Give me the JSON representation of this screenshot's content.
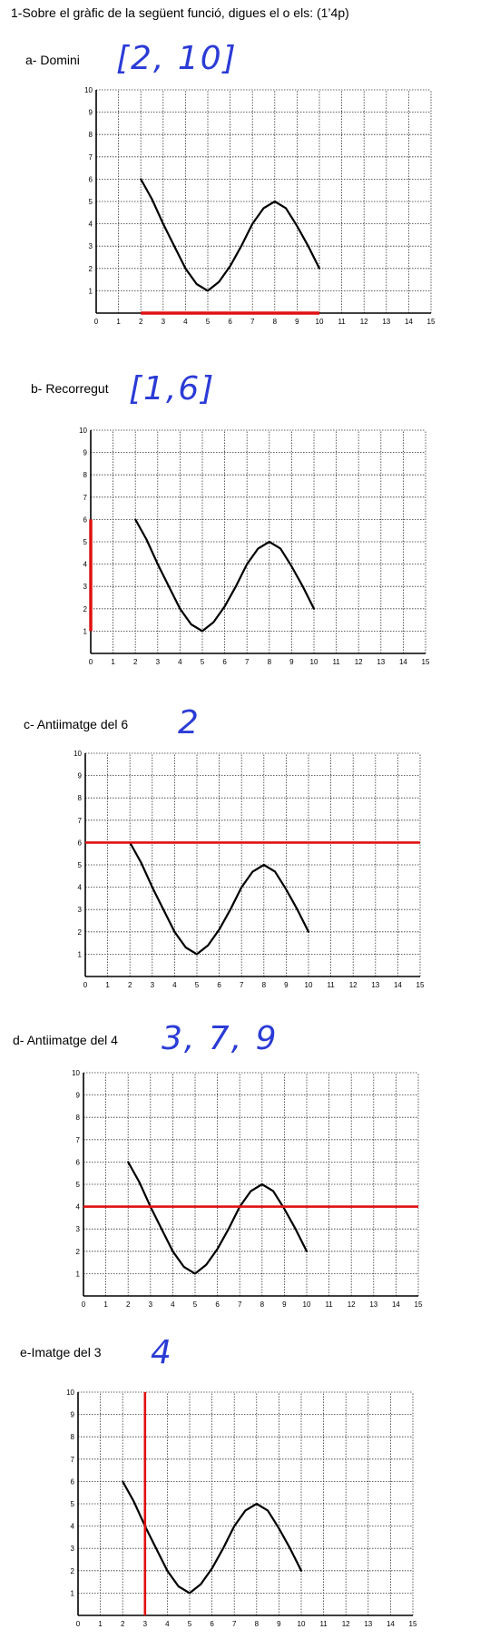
{
  "header": {
    "title": "1-Sobre el gràfic de la següent funció, digues el o els:   (1’4p)"
  },
  "sections": [
    {
      "label": "a- Domini",
      "answer": "[2, 10]",
      "highlight": "x-segment"
    },
    {
      "label": "b- Recorregut",
      "answer": "[1,6]",
      "highlight": "y-segment"
    },
    {
      "label": "c- Antiimatge del 6",
      "answer": "2",
      "highlight": "hline-6"
    },
    {
      "label": "d- Antiimatge del 4",
      "answer": "3, 7, 9",
      "highlight": "hline-4"
    },
    {
      "label": "e-Imatge del 3",
      "answer": "4",
      "highlight": "vline-3"
    }
  ],
  "chart_data": {
    "type": "line",
    "x": [
      2,
      2.5,
      3,
      3.5,
      4,
      4.5,
      5,
      5.5,
      6,
      6.5,
      7,
      7.5,
      8,
      8.5,
      9,
      9.5,
      10
    ],
    "y": [
      6,
      5.1,
      4,
      3,
      2,
      1.3,
      1,
      1.4,
      2.1,
      3,
      4,
      4.7,
      5,
      4.7,
      3.9,
      3,
      2
    ],
    "xlim": [
      0,
      15
    ],
    "ylim": [
      0,
      10
    ],
    "x_ticks": [
      "0",
      "1",
      "2",
      "3",
      "4",
      "5",
      "6",
      "7",
      "8",
      "9",
      "10",
      "11",
      "12",
      "13",
      "14",
      "15"
    ],
    "y_ticks": [
      "1",
      "2",
      "3",
      "4",
      "5",
      "6",
      "7",
      "8",
      "9",
      "10"
    ],
    "grid": true,
    "colors": {
      "curve": "#000000",
      "highlight": "#e01010",
      "answer": "#2b3bd6"
    }
  }
}
